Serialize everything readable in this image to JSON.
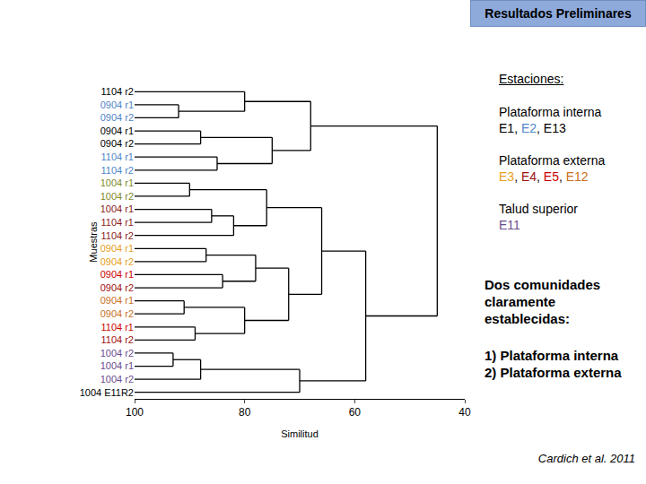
{
  "header": "Resultados Preliminares",
  "chart_data": {
    "type": "dendrogram",
    "x_label": "Similitud",
    "y_label": "Muestras",
    "xlim": [
      100,
      40
    ],
    "xticks": [
      100,
      80,
      60,
      40
    ],
    "grid": false,
    "color": "#000000",
    "leaves": [
      {
        "label": "1104 r2",
        "color": "#000000"
      },
      {
        "label": "0904 r1",
        "color": "#4f86c6"
      },
      {
        "label": "0904 r2",
        "color": "#4f86c6"
      },
      {
        "label": "0904 r1",
        "color": "#000000"
      },
      {
        "label": "0904 r2",
        "color": "#000000"
      },
      {
        "label": "1104 r1",
        "color": "#4f86c6"
      },
      {
        "label": "1104 r2",
        "color": "#4f86c6"
      },
      {
        "label": "1004 r1",
        "color": "#7f8a2a"
      },
      {
        "label": "1004 r2",
        "color": "#7f8a2a"
      },
      {
        "label": "1004 r1",
        "color": "#8b1a1a"
      },
      {
        "label": "1104 r1",
        "color": "#8b1a1a"
      },
      {
        "label": "1104 r2",
        "color": "#8b1a1a"
      },
      {
        "label": "0904 r1",
        "color": "#e6a020"
      },
      {
        "label": "0904 r2",
        "color": "#e6a020"
      },
      {
        "label": "0904 r1",
        "color": "#cc0000"
      },
      {
        "label": "0904 r2",
        "color": "#a01010"
      },
      {
        "label": "0904 r1",
        "color": "#c8701e"
      },
      {
        "label": "0904 r2",
        "color": "#c8701e"
      },
      {
        "label": "1104 r1",
        "color": "#cc0000"
      },
      {
        "label": "1104 r2",
        "color": "#a01010"
      },
      {
        "label": "1004 r2",
        "color": "#6a4c8c"
      },
      {
        "label": "1004 r1",
        "color": "#6a4c8c"
      },
      {
        "label": "1004 r2",
        "color": "#6a4c8c"
      },
      {
        "label": "1004 E11R2",
        "color": "#000000"
      }
    ],
    "merges": [
      {
        "left": 1,
        "right": 2,
        "similarity": 92
      },
      {
        "left": 3,
        "right": 4,
        "similarity": 88
      },
      {
        "left": 5,
        "right": 6,
        "similarity": 85
      },
      {
        "left": 7,
        "right": 8,
        "similarity": 90
      },
      {
        "left": 9,
        "right": 10,
        "similarity": 86
      },
      {
        "left": 28,
        "right": 11,
        "similarity": 82
      },
      {
        "left": 12,
        "right": 13,
        "similarity": 87
      },
      {
        "left": 14,
        "right": 15,
        "similarity": 84
      },
      {
        "left": 16,
        "right": 17,
        "similarity": 91
      },
      {
        "left": 18,
        "right": 19,
        "similarity": 89
      },
      {
        "left": 20,
        "right": 21,
        "similarity": 93
      },
      {
        "left": 34,
        "right": 22,
        "similarity": 88
      },
      {
        "left": 0,
        "right": 24,
        "similarity": 80
      },
      {
        "left": 25,
        "right": 26,
        "similarity": 75
      },
      {
        "left": 36,
        "right": 37,
        "similarity": 68
      },
      {
        "left": 27,
        "right": 29,
        "similarity": 76
      },
      {
        "left": 30,
        "right": 31,
        "similarity": 78
      },
      {
        "left": 32,
        "right": 33,
        "similarity": 80
      },
      {
        "left": 40,
        "right": 41,
        "similarity": 72
      },
      {
        "left": 39,
        "right": 42,
        "similarity": 66
      },
      {
        "left": 35,
        "right": 23,
        "similarity": 70
      },
      {
        "left": 43,
        "right": 44,
        "similarity": 58
      },
      {
        "left": 38,
        "right": 45,
        "similarity": 45
      }
    ]
  },
  "stations": {
    "title": "Estaciones:",
    "separator": ", ",
    "groups": [
      {
        "name": "Plataforma interna",
        "codes": [
          {
            "text": "E1",
            "color": "#000000"
          },
          {
            "text": "E2",
            "color": "#4f86c6"
          },
          {
            "text": "E13",
            "color": "#000000"
          }
        ]
      },
      {
        "name": "Plataforma externa",
        "codes": [
          {
            "text": "E3",
            "color": "#e6a020"
          },
          {
            "text": "E4",
            "color": "#a01010"
          },
          {
            "text": "E5",
            "color": "#cc0000"
          },
          {
            "text": "E12",
            "color": "#c8701e"
          }
        ]
      },
      {
        "name": "Talud superior",
        "codes": [
          {
            "text": "E11",
            "color": "#6a4c8c"
          }
        ]
      }
    ]
  },
  "conclusion": {
    "text": "Dos comunidades claramente establecidas:",
    "items": [
      "1) Plataforma interna",
      "2) Plataforma externa"
    ]
  },
  "citation": "Cardich et al. 2011"
}
